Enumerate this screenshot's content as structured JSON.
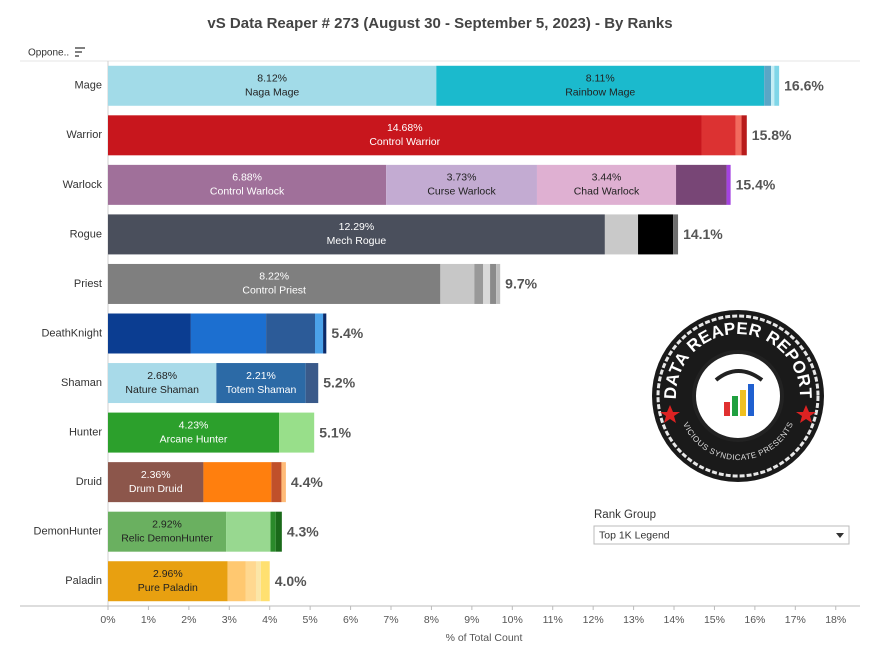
{
  "chart_data": {
    "type": "bar",
    "orientation": "horizontal",
    "stacked": true,
    "title": "vS Data Reaper #  273 (August 30 - September 5, 2023) - By Ranks",
    "row_header": "Oppone..",
    "xlabel": "% of Total Count",
    "xlim": [
      0,
      18.6
    ],
    "xticks": [
      {
        "value": 0,
        "label": "0%"
      },
      {
        "value": 1,
        "label": "1%"
      },
      {
        "value": 2,
        "label": "2%"
      },
      {
        "value": 3,
        "label": "3%"
      },
      {
        "value": 4,
        "label": "4%"
      },
      {
        "value": 5,
        "label": "5%"
      },
      {
        "value": 6,
        "label": "6%"
      },
      {
        "value": 7,
        "label": "7%"
      },
      {
        "value": 8,
        "label": "8%"
      },
      {
        "value": 9,
        "label": "9%"
      },
      {
        "value": 10,
        "label": "10%"
      },
      {
        "value": 11,
        "label": "11%"
      },
      {
        "value": 12,
        "label": "12%"
      },
      {
        "value": 13,
        "label": "13%"
      },
      {
        "value": 14,
        "label": "14%"
      },
      {
        "value": 15,
        "label": "15%"
      },
      {
        "value": 16,
        "label": "16%"
      },
      {
        "value": 17,
        "label": "17%"
      },
      {
        "value": 18,
        "label": "18%"
      }
    ],
    "bars": [
      {
        "category": "Mage",
        "total": 16.6,
        "total_label": "16.6%",
        "segments": [
          {
            "name": "Naga Mage",
            "value": 8.12,
            "value_label": "8.12%",
            "color": "#a2dbe8"
          },
          {
            "name": "Rainbow Mage",
            "value": 8.11,
            "value_label": "8.11%",
            "color": "#1bbacd"
          },
          {
            "value": 0.17,
            "color": "#5aa6c6"
          },
          {
            "value": 0.08,
            "color": "#c4eef5"
          },
          {
            "value": 0.12,
            "color": "#7fd6e8"
          }
        ]
      },
      {
        "category": "Warrior",
        "total": 15.8,
        "total_label": "15.8%",
        "segments": [
          {
            "name": "Control Warrior",
            "value": 14.68,
            "value_label": "14.68%",
            "color": "#c8161d"
          },
          {
            "value": 0.84,
            "color": "#dc3232"
          },
          {
            "value": 0.15,
            "color": "#f26a5e"
          },
          {
            "value": 0.13,
            "color": "#b81b1b"
          }
        ]
      },
      {
        "category": "Warlock",
        "total": 15.4,
        "total_label": "15.4%",
        "segments": [
          {
            "name": "Control Warlock",
            "value": 6.88,
            "value_label": "6.88%",
            "color": "#a0709a"
          },
          {
            "name": "Curse Warlock",
            "value": 3.73,
            "value_label": "3.73%",
            "color": "#c3abd2"
          },
          {
            "name": "Chad Warlock",
            "value": 3.44,
            "value_label": "3.44%",
            "color": "#dfb0d2"
          },
          {
            "value": 1.25,
            "color": "#784676"
          },
          {
            "value": 0.1,
            "color": "#a342e0"
          }
        ]
      },
      {
        "category": "Rogue",
        "total": 14.1,
        "total_label": "14.1%",
        "segments": [
          {
            "name": "Mech Rogue",
            "value": 12.29,
            "value_label": "12.29%",
            "color": "#4a4f5c"
          },
          {
            "value": 0.82,
            "color": "#c9c9c9"
          },
          {
            "value": 0.87,
            "color": "#000000"
          },
          {
            "value": 0.12,
            "color": "#6e6e6e"
          }
        ]
      },
      {
        "category": "Priest",
        "total": 9.7,
        "total_label": "9.7%",
        "segments": [
          {
            "name": "Control Priest",
            "value": 8.22,
            "value_label": "8.22%",
            "color": "#7f7f7f"
          },
          {
            "value": 0.84,
            "color": "#c7c7c7"
          },
          {
            "value": 0.22,
            "color": "#999999"
          },
          {
            "value": 0.17,
            "color": "#d9d9d9"
          },
          {
            "value": 0.15,
            "color": "#8a8a8a"
          },
          {
            "value": 0.1,
            "color": "#bdbdbd"
          }
        ]
      },
      {
        "category": "DeathKnight",
        "total": 5.4,
        "total_label": "5.4%",
        "segments": [
          {
            "value": 2.05,
            "color": "#0b3d91"
          },
          {
            "value": 1.86,
            "color": "#1c6fd0"
          },
          {
            "value": 1.21,
            "color": "#2c5b98"
          },
          {
            "value": 0.2,
            "color": "#4ba2ea"
          },
          {
            "value": 0.08,
            "color": "#0a2a6a"
          }
        ]
      },
      {
        "category": "Shaman",
        "total": 5.2,
        "total_label": "5.2%",
        "segments": [
          {
            "name": "Nature Shaman",
            "value": 2.68,
            "value_label": "2.68%",
            "color": "#a8dae9"
          },
          {
            "name": "Totem Shaman",
            "value": 2.21,
            "value_label": "2.21%",
            "color": "#2c6aa6"
          },
          {
            "value": 0.31,
            "color": "#3a5a8a"
          }
        ]
      },
      {
        "category": "Hunter",
        "total": 5.1,
        "total_label": "5.1%",
        "segments": [
          {
            "name": "Arcane Hunter",
            "value": 4.23,
            "value_label": "4.23%",
            "color": "#2ca02c"
          },
          {
            "value": 0.87,
            "color": "#98df8a"
          }
        ]
      },
      {
        "category": "Druid",
        "total": 4.4,
        "total_label": "4.4%",
        "segments": [
          {
            "name": "Drum Druid",
            "value": 2.36,
            "value_label": "2.36%",
            "color": "#8c564b"
          },
          {
            "value": 1.68,
            "color": "#ff7f0e"
          },
          {
            "value": 0.25,
            "color": "#c0502a"
          },
          {
            "value": 0.11,
            "color": "#ffbb78"
          }
        ]
      },
      {
        "category": "DemonHunter",
        "total": 4.3,
        "total_label": "4.3%",
        "segments": [
          {
            "name": "Relic DemonHunter",
            "value": 2.92,
            "value_label": "2.92%",
            "color": "#6ab060"
          },
          {
            "value": 1.1,
            "color": "#98d890"
          },
          {
            "value": 0.13,
            "color": "#2a8a2a"
          },
          {
            "value": 0.15,
            "color": "#1a6a1a"
          }
        ]
      },
      {
        "category": "Paladin",
        "total": 4.0,
        "total_label": "4.0%",
        "segments": [
          {
            "name": "Pure Paladin",
            "value": 2.96,
            "value_label": "2.96%",
            "color": "#e8a010"
          },
          {
            "value": 0.45,
            "color": "#ffc870"
          },
          {
            "value": 0.25,
            "color": "#ffd890"
          },
          {
            "value": 0.12,
            "color": "#fbe6a8"
          },
          {
            "value": 0.22,
            "color": "#ffe070"
          }
        ]
      }
    ]
  },
  "filter": {
    "title": "Rank Group",
    "selected": "Top 1K Legend"
  },
  "logo": {
    "title": "DATA REAPER REPORT",
    "subtitle": "VICIOUS SYNDICATE PRESENTS"
  }
}
